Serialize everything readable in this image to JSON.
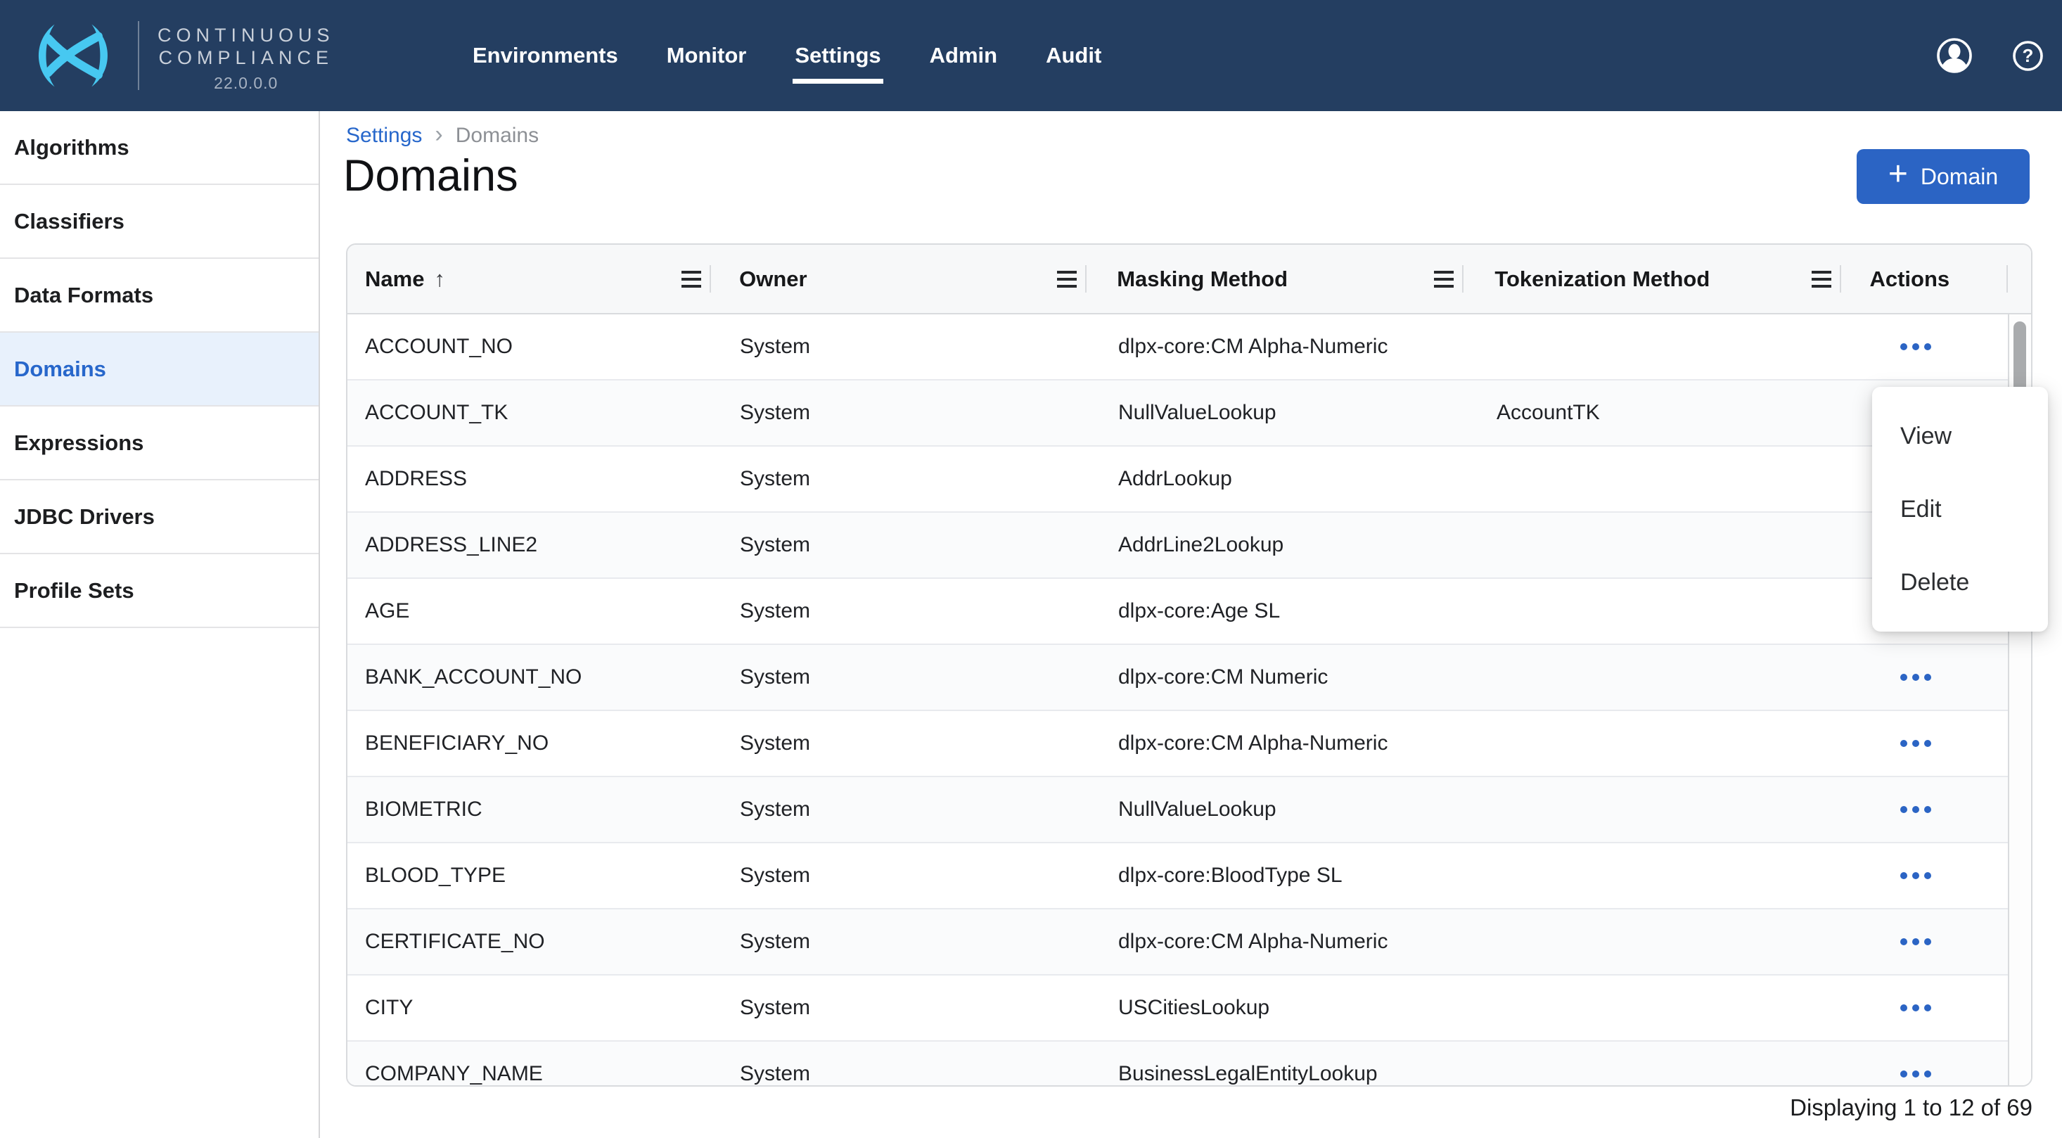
{
  "navbar": {
    "brand": {
      "line1": "CONTINUOUS",
      "line2": "COMPLIANCE",
      "version": "22.0.0.0"
    },
    "items": [
      {
        "label": "Environments",
        "active": false
      },
      {
        "label": "Monitor",
        "active": false
      },
      {
        "label": "Settings",
        "active": true
      },
      {
        "label": "Admin",
        "active": false
      },
      {
        "label": "Audit",
        "active": false
      }
    ],
    "icons": [
      "user-avatar-icon",
      "help-icon"
    ]
  },
  "sidebar": {
    "items": [
      {
        "label": "Algorithms",
        "active": false
      },
      {
        "label": "Classifiers",
        "active": false
      },
      {
        "label": "Data Formats",
        "active": false
      },
      {
        "label": "Domains",
        "active": true
      },
      {
        "label": "Expressions",
        "active": false
      },
      {
        "label": "JDBC Drivers",
        "active": false
      },
      {
        "label": "Profile Sets",
        "active": false
      }
    ]
  },
  "breadcrumb": {
    "parent": "Settings",
    "current": "Domains"
  },
  "page": {
    "title": "Domains",
    "add_button_label": "Domain",
    "add_button_icon": "+"
  },
  "table": {
    "columns": [
      "Name",
      "Owner",
      "Masking Method",
      "Tokenization Method",
      "Actions"
    ],
    "sort": {
      "column": "Name",
      "direction": "asc"
    },
    "rows": [
      {
        "name": "ACCOUNT_NO",
        "owner": "System",
        "masking_method": "dlpx-core:CM Alpha-Numeric",
        "tokenization_method": ""
      },
      {
        "name": "ACCOUNT_TK",
        "owner": "System",
        "masking_method": "NullValueLookup",
        "tokenization_method": "AccountTK"
      },
      {
        "name": "ADDRESS",
        "owner": "System",
        "masking_method": "AddrLookup",
        "tokenization_method": ""
      },
      {
        "name": "ADDRESS_LINE2",
        "owner": "System",
        "masking_method": "AddrLine2Lookup",
        "tokenization_method": ""
      },
      {
        "name": "AGE",
        "owner": "System",
        "masking_method": "dlpx-core:Age SL",
        "tokenization_method": ""
      },
      {
        "name": "BANK_ACCOUNT_NO",
        "owner": "System",
        "masking_method": "dlpx-core:CM Numeric",
        "tokenization_method": ""
      },
      {
        "name": "BENEFICIARY_NO",
        "owner": "System",
        "masking_method": "dlpx-core:CM Alpha-Numeric",
        "tokenization_method": ""
      },
      {
        "name": "BIOMETRIC",
        "owner": "System",
        "masking_method": "NullValueLookup",
        "tokenization_method": ""
      },
      {
        "name": "BLOOD_TYPE",
        "owner": "System",
        "masking_method": "dlpx-core:BloodType SL",
        "tokenization_method": ""
      },
      {
        "name": "CERTIFICATE_NO",
        "owner": "System",
        "masking_method": "dlpx-core:CM Alpha-Numeric",
        "tokenization_method": ""
      },
      {
        "name": "CITY",
        "owner": "System",
        "masking_method": "USCitiesLookup",
        "tokenization_method": ""
      },
      {
        "name": "COMPANY_NAME",
        "owner": "System",
        "masking_method": "BusinessLegalEntityLookup",
        "tokenization_method": ""
      }
    ],
    "status": "Displaying 1 to 12 of 69"
  },
  "context_menu": {
    "items": [
      "View",
      "Edit",
      "Delete"
    ]
  },
  "colors": {
    "navbar": "#243e61",
    "accent_blue": "#2b64c4",
    "logo_cyan": "#47c8f1",
    "active_item_bg": "#e8f1fc",
    "link_blue": "#2767cb"
  }
}
